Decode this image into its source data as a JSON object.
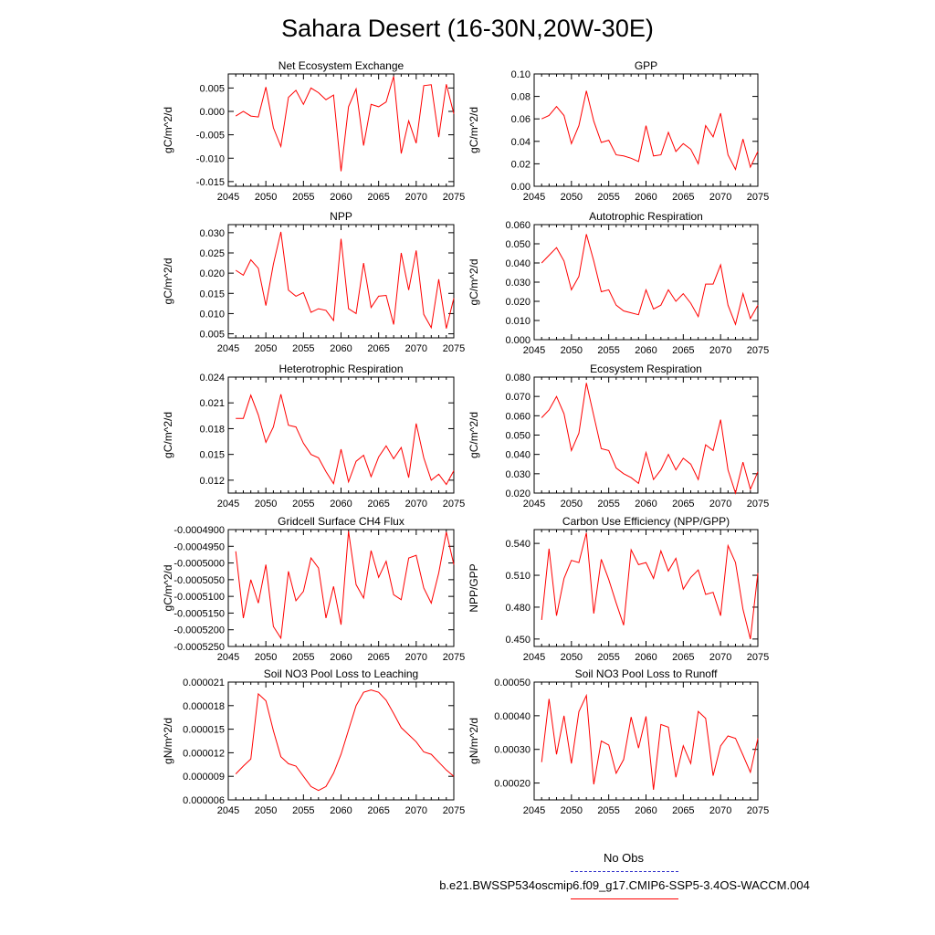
{
  "title": "Sahara Desert (16-30N,20W-30E)",
  "legend": {
    "obs_label": "No Obs",
    "obs_color": "#3333cc",
    "model_label": "b.e21.BWSSP534oscmip6.f09_g17.CMIP6-SSP5-3.4OS-WACCM.004",
    "model_color": "#ff0000"
  },
  "colors": {
    "series": "#ff0000",
    "axis": "#000000"
  },
  "chart_data": [
    {
      "type": "line",
      "title": "Net Ecosystem Exchange",
      "ylabel": "gC/m^2/d",
      "xlim": [
        2045,
        2075
      ],
      "ylim": [
        -0.016,
        0.008
      ],
      "xticks": [
        "2045",
        "2050",
        "2055",
        "2060",
        "2065",
        "2070",
        "2075"
      ],
      "yticks": [
        "-0.015",
        "-0.010",
        "-0.005",
        "0.000",
        "0.005"
      ],
      "x": [
        2046,
        2047,
        2048,
        2049,
        2050,
        2051,
        2052,
        2053,
        2054,
        2055,
        2056,
        2057,
        2058,
        2059,
        2060,
        2061,
        2062,
        2063,
        2064,
        2065,
        2066,
        2067,
        2068,
        2069,
        2070,
        2071,
        2072,
        2073,
        2074,
        2075
      ],
      "y": [
        -0.001,
        0.0,
        -0.001,
        -0.0012,
        0.0052,
        -0.0035,
        -0.0075,
        0.003,
        0.0045,
        0.0015,
        0.005,
        0.004,
        0.0025,
        0.0035,
        -0.0128,
        0.001,
        0.0048,
        -0.0073,
        0.0015,
        0.001,
        0.002,
        0.0075,
        -0.009,
        -0.002,
        -0.0068,
        0.0055,
        0.0057,
        -0.0055,
        0.0058,
        -0.0005
      ]
    },
    {
      "type": "line",
      "title": "GPP",
      "ylabel": "gC/m^2/d",
      "xlim": [
        2045,
        2075
      ],
      "ylim": [
        0.0,
        0.1
      ],
      "xticks": [
        "2045",
        "2050",
        "2055",
        "2060",
        "2065",
        "2070",
        "2075"
      ],
      "yticks": [
        "0.00",
        "0.02",
        "0.04",
        "0.06",
        "0.08",
        "0.10"
      ],
      "x": [
        2046,
        2047,
        2048,
        2049,
        2050,
        2051,
        2052,
        2053,
        2054,
        2055,
        2056,
        2057,
        2058,
        2059,
        2060,
        2061,
        2062,
        2063,
        2064,
        2065,
        2066,
        2067,
        2068,
        2069,
        2070,
        2071,
        2072,
        2073,
        2074,
        2075
      ],
      "y": [
        0.06,
        0.063,
        0.071,
        0.063,
        0.038,
        0.054,
        0.085,
        0.058,
        0.039,
        0.041,
        0.028,
        0.027,
        0.025,
        0.022,
        0.054,
        0.027,
        0.028,
        0.048,
        0.031,
        0.038,
        0.033,
        0.02,
        0.054,
        0.044,
        0.065,
        0.028,
        0.015,
        0.042,
        0.017,
        0.031
      ]
    },
    {
      "type": "line",
      "title": "NPP",
      "ylabel": "gC/m^2/d",
      "xlim": [
        2045,
        2075
      ],
      "ylim": [
        0.004,
        0.032
      ],
      "xticks": [
        "2045",
        "2050",
        "2055",
        "2060",
        "2065",
        "2070",
        "2075"
      ],
      "yticks": [
        "0.005",
        "0.010",
        "0.015",
        "0.020",
        "0.025",
        "0.030"
      ],
      "x": [
        2046,
        2047,
        2048,
        2049,
        2050,
        2051,
        2052,
        2053,
        2054,
        2055,
        2056,
        2057,
        2058,
        2059,
        2060,
        2061,
        2062,
        2063,
        2064,
        2065,
        2066,
        2067,
        2068,
        2069,
        2070,
        2071,
        2072,
        2073,
        2074,
        2075
      ],
      "y": [
        0.0207,
        0.0195,
        0.0233,
        0.0212,
        0.012,
        0.0222,
        0.0302,
        0.0158,
        0.0143,
        0.0152,
        0.0103,
        0.0112,
        0.0108,
        0.0083,
        0.0285,
        0.0112,
        0.01,
        0.0225,
        0.0115,
        0.0143,
        0.0145,
        0.0073,
        0.025,
        0.0158,
        0.0256,
        0.0098,
        0.0065,
        0.0185,
        0.0063,
        0.0138
      ]
    },
    {
      "type": "line",
      "title": "Autotrophic Respiration",
      "ylabel": "gC/m^2/d",
      "xlim": [
        2045,
        2075
      ],
      "ylim": [
        0.0,
        0.06
      ],
      "xticks": [
        "2045",
        "2050",
        "2055",
        "2060",
        "2065",
        "2070",
        "2075"
      ],
      "yticks": [
        "0.000",
        "0.010",
        "0.020",
        "0.030",
        "0.040",
        "0.050",
        "0.060"
      ],
      "x": [
        2046,
        2047,
        2048,
        2049,
        2050,
        2051,
        2052,
        2053,
        2054,
        2055,
        2056,
        2057,
        2058,
        2059,
        2060,
        2061,
        2062,
        2063,
        2064,
        2065,
        2066,
        2067,
        2068,
        2069,
        2070,
        2071,
        2072,
        2073,
        2074,
        2075
      ],
      "y": [
        0.04,
        0.044,
        0.048,
        0.041,
        0.026,
        0.033,
        0.055,
        0.041,
        0.025,
        0.026,
        0.018,
        0.015,
        0.014,
        0.013,
        0.026,
        0.016,
        0.018,
        0.026,
        0.02,
        0.024,
        0.019,
        0.012,
        0.029,
        0.029,
        0.039,
        0.018,
        0.008,
        0.024,
        0.011,
        0.018
      ]
    },
    {
      "type": "line",
      "title": "Heterotrophic Respiration",
      "ylabel": "gC/m^2/d",
      "xlim": [
        2045,
        2075
      ],
      "ylim": [
        0.0105,
        0.024
      ],
      "xticks": [
        "2045",
        "2050",
        "2055",
        "2060",
        "2065",
        "2070",
        "2075"
      ],
      "yticks": [
        "0.012",
        "0.015",
        "0.018",
        "0.021",
        "0.024"
      ],
      "x": [
        2046,
        2047,
        2048,
        2049,
        2050,
        2051,
        2052,
        2053,
        2054,
        2055,
        2056,
        2057,
        2058,
        2059,
        2060,
        2061,
        2062,
        2063,
        2064,
        2065,
        2066,
        2067,
        2068,
        2069,
        2070,
        2071,
        2072,
        2073,
        2074,
        2075
      ],
      "y": [
        0.0192,
        0.0192,
        0.0219,
        0.0196,
        0.0164,
        0.0182,
        0.022,
        0.0184,
        0.0182,
        0.0163,
        0.015,
        0.0146,
        0.013,
        0.0116,
        0.0156,
        0.0118,
        0.0142,
        0.0149,
        0.0124,
        0.0147,
        0.016,
        0.0145,
        0.0158,
        0.0123,
        0.0186,
        0.0146,
        0.012,
        0.0127,
        0.0115,
        0.0131
      ]
    },
    {
      "type": "line",
      "title": "Ecosystem Respiration",
      "ylabel": "gC/m^2/d",
      "xlim": [
        2045,
        2075
      ],
      "ylim": [
        0.02,
        0.08
      ],
      "xticks": [
        "2045",
        "2050",
        "2055",
        "2060",
        "2065",
        "2070",
        "2075"
      ],
      "yticks": [
        "0.020",
        "0.030",
        "0.040",
        "0.050",
        "0.060",
        "0.070",
        "0.080"
      ],
      "x": [
        2046,
        2047,
        2048,
        2049,
        2050,
        2051,
        2052,
        2053,
        2054,
        2055,
        2056,
        2057,
        2058,
        2059,
        2060,
        2061,
        2062,
        2063,
        2064,
        2065,
        2066,
        2067,
        2068,
        2069,
        2070,
        2071,
        2072,
        2073,
        2074,
        2075
      ],
      "y": [
        0.059,
        0.063,
        0.07,
        0.061,
        0.042,
        0.051,
        0.077,
        0.06,
        0.043,
        0.042,
        0.033,
        0.03,
        0.028,
        0.025,
        0.041,
        0.027,
        0.032,
        0.04,
        0.032,
        0.038,
        0.035,
        0.027,
        0.045,
        0.042,
        0.058,
        0.032,
        0.02,
        0.036,
        0.022,
        0.031
      ]
    },
    {
      "type": "line",
      "title": "Gridcell Surface CH4 Flux",
      "ylabel": "gC/m^2/d",
      "xlim": [
        2045,
        2075
      ],
      "ylim": [
        -0.000525,
        -0.00049
      ],
      "xticks": [
        "2045",
        "2050",
        "2055",
        "2060",
        "2065",
        "2070",
        "2075"
      ],
      "yticks": [
        "-0.0005250",
        "-0.0005200",
        "-0.0005150",
        "-0.0005100",
        "-0.0005050",
        "-0.0005000",
        "-0.0004950",
        "-0.0004900"
      ],
      "x": [
        2046,
        2047,
        2048,
        2049,
        2050,
        2051,
        2052,
        2053,
        2054,
        2055,
        2056,
        2057,
        2058,
        2059,
        2060,
        2061,
        2062,
        2063,
        2064,
        2065,
        2066,
        2067,
        2068,
        2069,
        2070,
        2071,
        2072,
        2073,
        2074,
        2075
      ],
      "y": [
        -0.0004965,
        -0.0005165,
        -0.000505,
        -0.000512,
        -0.0005005,
        -0.000519,
        -0.0005225,
        -0.0005025,
        -0.0005113,
        -0.0005085,
        -0.0004985,
        -0.0005015,
        -0.0005165,
        -0.000507,
        -0.0005185,
        -0.0004905,
        -0.0005065,
        -0.0005105,
        -0.0004963,
        -0.0005043,
        -0.0004995,
        -0.0005095,
        -0.000511,
        -0.0004985,
        -0.0004977,
        -0.0005075,
        -0.000512,
        -0.000503,
        -0.0004907,
        -0.0005005
      ]
    },
    {
      "type": "line",
      "title": "Carbon Use Efficiency (NPP/GPP)",
      "ylabel": "NPP/GPP",
      "xlim": [
        2045,
        2075
      ],
      "ylim": [
        0.443,
        0.553
      ],
      "xticks": [
        "2045",
        "2050",
        "2055",
        "2060",
        "2065",
        "2070",
        "2075"
      ],
      "yticks": [
        "0.450",
        "0.480",
        "0.510",
        "0.540"
      ],
      "x": [
        2046,
        2047,
        2048,
        2049,
        2050,
        2051,
        2052,
        2053,
        2054,
        2055,
        2056,
        2057,
        2058,
        2059,
        2060,
        2061,
        2062,
        2063,
        2064,
        2065,
        2066,
        2067,
        2068,
        2069,
        2070,
        2071,
        2072,
        2073,
        2074,
        2075
      ],
      "y": [
        0.468,
        0.535,
        0.472,
        0.507,
        0.524,
        0.522,
        0.55,
        0.474,
        0.525,
        0.506,
        0.484,
        0.463,
        0.534,
        0.52,
        0.522,
        0.507,
        0.533,
        0.514,
        0.526,
        0.497,
        0.508,
        0.515,
        0.492,
        0.494,
        0.472,
        0.538,
        0.522,
        0.478,
        0.45,
        0.512
      ]
    },
    {
      "type": "line",
      "title": "Soil NO3 Pool Loss to Leaching",
      "ylabel": "gN/m^2/d",
      "xlim": [
        2045,
        2075
      ],
      "ylim": [
        6e-06,
        2.1e-05
      ],
      "xticks": [
        "2045",
        "2050",
        "2055",
        "2060",
        "2065",
        "2070",
        "2075"
      ],
      "yticks": [
        "0.000006",
        "0.000009",
        "0.000012",
        "0.000015",
        "0.000018",
        "0.000021"
      ],
      "x": [
        2046,
        2047,
        2048,
        2049,
        2050,
        2051,
        2052,
        2053,
        2054,
        2055,
        2056,
        2057,
        2058,
        2059,
        2060,
        2061,
        2062,
        2063,
        2064,
        2065,
        2066,
        2067,
        2068,
        2069,
        2070,
        2071,
        2072,
        2073,
        2074,
        2075
      ],
      "y": [
        9.3e-06,
        1.03e-05,
        1.12e-05,
        1.95e-05,
        1.86e-05,
        1.48e-05,
        1.15e-05,
        1.06e-05,
        1.03e-05,
        9e-06,
        7.7e-06,
        7.2e-06,
        7.7e-06,
        9.4e-06,
        1.18e-05,
        1.49e-05,
        1.8e-05,
        1.97e-05,
        2e-05,
        1.97e-05,
        1.87e-05,
        1.7e-05,
        1.52e-05,
        1.43e-05,
        1.34e-05,
        1.21e-05,
        1.18e-05,
        1.08e-05,
        9.8e-06,
        9e-06
      ]
    },
    {
      "type": "line",
      "title": "Soil NO3 Pool Loss to Runoff",
      "ylabel": "gN/m^2/d",
      "xlim": [
        2045,
        2075
      ],
      "ylim": [
        0.00015,
        0.0005
      ],
      "xticks": [
        "2045",
        "2050",
        "2055",
        "2060",
        "2065",
        "2070",
        "2075"
      ],
      "yticks": [
        "0.00020",
        "0.00030",
        "0.00040",
        "0.00050"
      ],
      "x": [
        2046,
        2047,
        2048,
        2049,
        2050,
        2051,
        2052,
        2053,
        2054,
        2055,
        2056,
        2057,
        2058,
        2059,
        2060,
        2061,
        2062,
        2063,
        2064,
        2065,
        2066,
        2067,
        2068,
        2069,
        2070,
        2071,
        2072,
        2073,
        2074,
        2075
      ],
      "y": [
        0.000262,
        0.00045,
        0.000285,
        0.0004,
        0.000258,
        0.000412,
        0.00046,
        0.000196,
        0.000325,
        0.000313,
        0.000229,
        0.00027,
        0.000396,
        0.000304,
        0.000398,
        0.00018,
        0.000374,
        0.000366,
        0.000217,
        0.000311,
        0.000258,
        0.000413,
        0.000392,
        0.000222,
        0.00031,
        0.00034,
        0.000333,
        0.000283,
        0.000232,
        0.000333
      ]
    }
  ]
}
